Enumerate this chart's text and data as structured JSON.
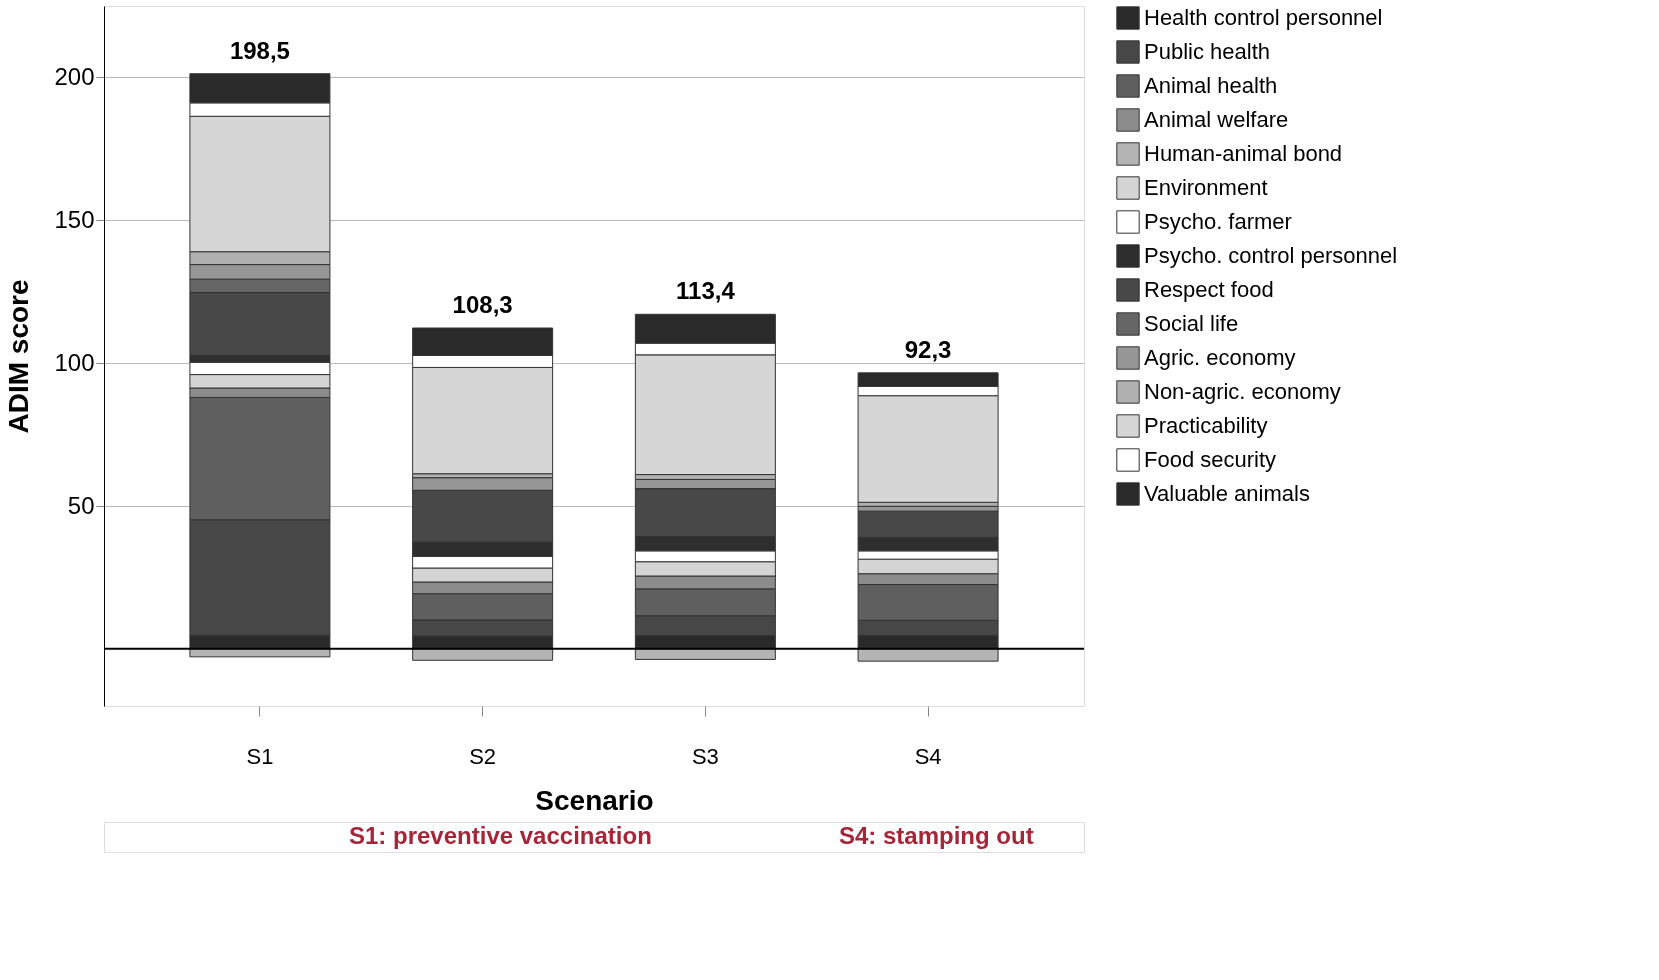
{
  "chart_data": {
    "type": "bar",
    "stacked": true,
    "xlabel": "Scenario",
    "ylabel": "ADIM score",
    "categories": [
      "S1",
      "S2",
      "S3",
      "S4"
    ],
    "series": [
      {
        "name": "Health control personnel",
        "color": "#2a2a2a",
        "values": [
          4.8,
          4.5,
          4.7,
          4.7
        ]
      },
      {
        "name": "Public health",
        "color": "#474747",
        "values": [
          40.4,
          5.6,
          6.9,
          5.3
        ]
      },
      {
        "name": "Animal health",
        "color": "#5f5f5f",
        "values": [
          42.8,
          9.2,
          9.4,
          12.5
        ]
      },
      {
        "name": "Animal welfare",
        "color": "#8c8c8c",
        "values": [
          3.3,
          4.1,
          4.5,
          3.8
        ]
      },
      {
        "name": "Human-animal bond",
        "color": "#b4b4b4",
        "values": [
          -2.8,
          -4.0,
          -3.7,
          -4.3
        ]
      },
      {
        "name": "Environment",
        "color": "#d4d4d4",
        "values": [
          4.7,
          4.9,
          5.0,
          5.1
        ]
      },
      {
        "name": "Psycho. farmer",
        "color": "#ffffff",
        "values": [
          4.3,
          4.1,
          3.8,
          2.9
        ]
      },
      {
        "name": "Psycho. control personnel",
        "color": "#2e2e2e",
        "values": [
          2.4,
          5.0,
          5.0,
          4.7
        ]
      },
      {
        "name": "Respect food",
        "color": "#484848",
        "values": [
          22.0,
          18.1,
          16.8,
          9.2
        ]
      },
      {
        "name": "Social life",
        "color": "#666666",
        "values": [
          4.7,
          0,
          0,
          0
        ]
      },
      {
        "name": "Agric. economy",
        "color": "#969696",
        "values": [
          5.1,
          4.4,
          3.2,
          1.7
        ]
      },
      {
        "name": "Non-agric. economy",
        "color": "#b0b0b0",
        "values": [
          4.5,
          1.4,
          1.7,
          1.4
        ]
      },
      {
        "name": "Practicability",
        "color": "#d6d6d6",
        "values": [
          47.4,
          37.2,
          41.9,
          37.3
        ]
      },
      {
        "name": "Food security",
        "color": "#ffffff",
        "values": [
          4.7,
          4.2,
          4.1,
          3.3
        ]
      },
      {
        "name": "Valuable animals",
        "color": "#2a2a2a",
        "values": [
          10.2,
          9.6,
          10.1,
          4.7
        ]
      }
    ],
    "totals": [
      "198,5",
      "108,3",
      "113,4",
      "92,3"
    ],
    "ylim": [
      -20,
      225
    ],
    "yticks": [
      50,
      100,
      150,
      200
    ],
    "grid": "y",
    "legend": "right",
    "ref_lines": [
      {
        "axis": "y",
        "value": 0,
        "color": "#000000"
      }
    ],
    "annotations": [
      "S1: preventive vaccination",
      "S4: stamping out"
    ]
  }
}
